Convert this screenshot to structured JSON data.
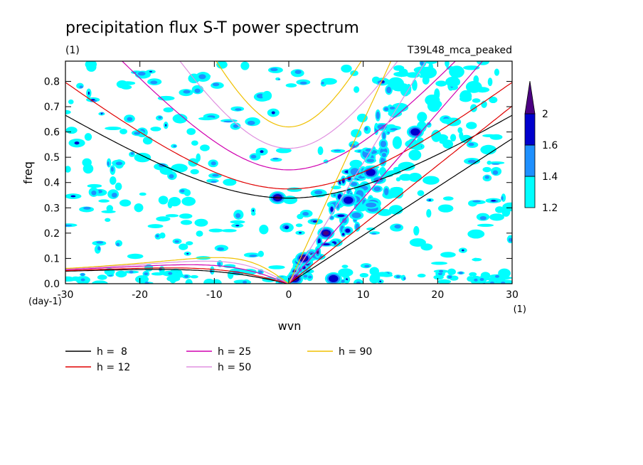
{
  "chart_data": {
    "type": "heatmap",
    "title": "precipitation flux S-T power spectrum",
    "subtitle_left": "(1)",
    "subtitle_right": "T39L48_mca_peaked",
    "xlabel": "wvn",
    "ylabel": "freq",
    "x_unit": "(1)",
    "y_unit": "(day-1)",
    "xlim": [
      -30,
      30
    ],
    "ylim": [
      0,
      0.88
    ],
    "xticks": [
      "-30",
      "-20",
      "-10",
      "0",
      "10",
      "20",
      "30"
    ],
    "yticks": [
      "0.0",
      "0.1",
      "0.2",
      "0.3",
      "0.4",
      "0.5",
      "0.6",
      "0.7",
      "0.8"
    ],
    "colorbar": {
      "levels": [
        "1.2",
        "1.4",
        "1.6",
        "2"
      ],
      "colors": [
        "#00ffff",
        "#1e90ff",
        "#0000cd",
        "#4b0082"
      ]
    },
    "dispersion_curves": [
      {
        "label": "h =  8",
        "h": 8,
        "color": "#000000"
      },
      {
        "label": "h = 12",
        "h": 12,
        "color": "#e00000"
      },
      {
        "label": "h = 25",
        "h": 25,
        "color": "#d000b0"
      },
      {
        "label": "h = 50",
        "h": 50,
        "color": "#e090e0"
      },
      {
        "label": "h = 90",
        "h": 90,
        "color": "#f0c000"
      }
    ],
    "notable_features": [
      {
        "x": -1.5,
        "y": 0.34,
        "level": "2"
      },
      {
        "x": 2,
        "y": 0.1,
        "level": "2"
      },
      {
        "x": 0.8,
        "y": 0.02,
        "level": "2"
      },
      {
        "x": 5,
        "y": 0.2,
        "level": "2"
      },
      {
        "x": 8,
        "y": 0.33,
        "level": "1.6"
      },
      {
        "x": 11,
        "y": 0.44,
        "level": "1.6"
      },
      {
        "x": 17,
        "y": 0.6,
        "level": "1.6"
      },
      {
        "x": 6,
        "y": 0.02,
        "level": "1.6"
      }
    ]
  }
}
